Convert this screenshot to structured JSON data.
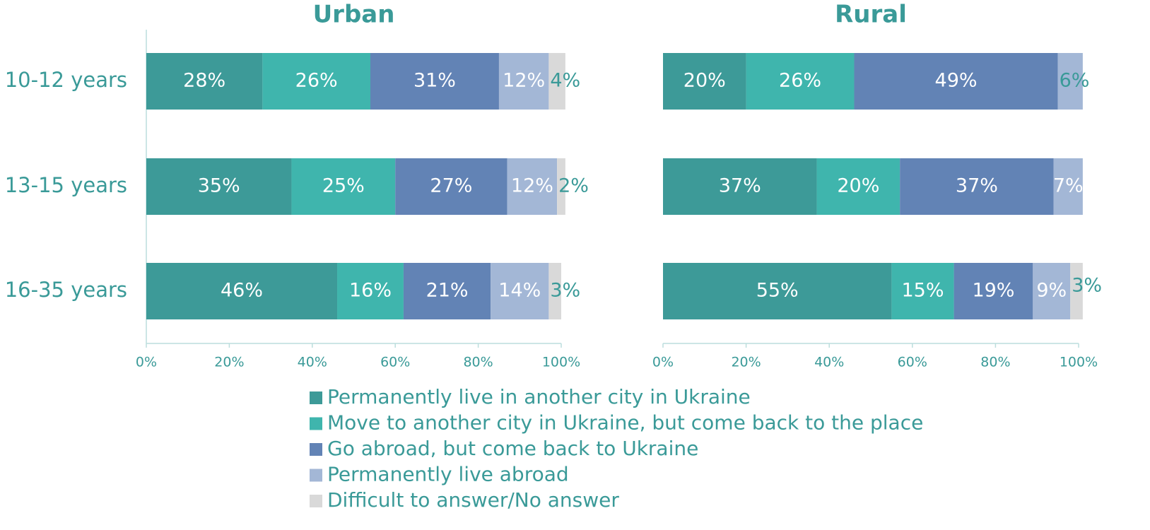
{
  "chart_data": [
    {
      "type": "bar",
      "orientation": "horizontal",
      "title": "Urban",
      "categories": [
        "10-12 years",
        "13-15 years",
        "16-35 years"
      ],
      "series": [
        {
          "name": "Permanently live in another city in Ukraine",
          "color": "#3d9a98",
          "values": [
            28,
            35,
            46
          ],
          "value_labels": [
            "28%",
            "35%",
            "46%"
          ]
        },
        {
          "name": "Move to another city in Ukraine, but come back to the place",
          "color": "#3fb5ad",
          "values": [
            26,
            25,
            16
          ],
          "value_labels": [
            "26%",
            "25%",
            "16%"
          ]
        },
        {
          "name": "Go abroad, but come back to Ukraine",
          "color": "#6283b5",
          "values": [
            31,
            27,
            21
          ],
          "value_labels": [
            "31%",
            "27%",
            "21%"
          ]
        },
        {
          "name": "Permanently live abroad",
          "color": "#a3b7d6",
          "values": [
            12,
            12,
            14
          ],
          "value_labels": [
            "12%",
            "12%",
            "14%"
          ]
        },
        {
          "name": "Difficult to answer/No answer",
          "color": "#d9d9d9",
          "values": [
            4,
            2,
            3
          ],
          "value_labels": [
            "4%",
            "2%",
            "3%"
          ]
        }
      ],
      "xlim": [
        0,
        100
      ],
      "xticks": [
        {
          "value": 0,
          "label": "0%"
        },
        {
          "value": 20,
          "label": "20%"
        },
        {
          "value": 40,
          "label": "40%"
        },
        {
          "value": 60,
          "label": "60%"
        },
        {
          "value": 80,
          "label": "80%"
        },
        {
          "value": 100,
          "label": "100%"
        }
      ]
    },
    {
      "type": "bar",
      "orientation": "horizontal",
      "title": "Rural",
      "categories": [
        "10-12 years",
        "13-15 years",
        "16-35 years"
      ],
      "series": [
        {
          "name": "Permanently live in another city in Ukraine",
          "color": "#3d9a98",
          "values": [
            20,
            37,
            55
          ],
          "value_labels": [
            "20%",
            "37%",
            "55%"
          ]
        },
        {
          "name": "Move to another city in Ukraine, but come back to the place",
          "color": "#3fb5ad",
          "values": [
            26,
            20,
            15
          ],
          "value_labels": [
            "26%",
            "20%",
            "15%"
          ]
        },
        {
          "name": "Go abroad, but come back to Ukraine",
          "color": "#6283b5",
          "values": [
            49,
            37,
            19
          ],
          "value_labels": [
            "49%",
            "37%",
            "19%"
          ]
        },
        {
          "name": "Permanently live abroad",
          "color": "#a3b7d6",
          "values": [
            6,
            7,
            9
          ],
          "value_labels": [
            "6%",
            "7%",
            "9%"
          ]
        },
        {
          "name": "Difficult to answer/No answer",
          "color": "#d9d9d9",
          "values": [
            null,
            null,
            3
          ],
          "value_labels": [
            null,
            null,
            "3%"
          ]
        }
      ],
      "xlim": [
        0,
        100
      ],
      "xticks": [
        {
          "value": 0,
          "label": "0%"
        },
        {
          "value": 20,
          "label": "20%"
        },
        {
          "value": 40,
          "label": "40%"
        },
        {
          "value": 60,
          "label": "60%"
        },
        {
          "value": 80,
          "label": "80%"
        },
        {
          "value": 100,
          "label": "100%"
        }
      ]
    }
  ]
}
